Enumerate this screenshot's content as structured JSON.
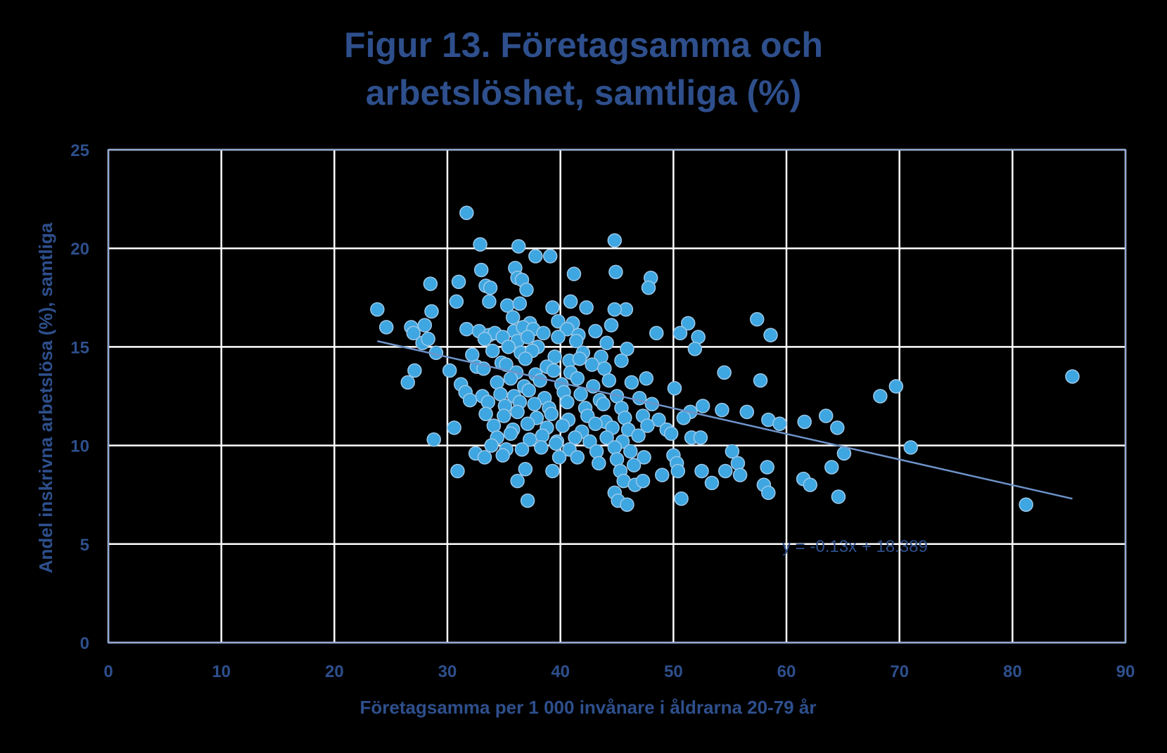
{
  "chart_data": {
    "type": "scatter",
    "title_lines": [
      "Figur 13. Företagsamma och",
      "arbetslöshet, samtliga (%)"
    ],
    "xlabel": "Företagsamma per 1 000 invånare i åldrarna 20-79 år",
    "ylabel": "Andel inskrivna arbetslösa  (%), samtliga",
    "xlim": [
      0,
      90
    ],
    "ylim": [
      0,
      25
    ],
    "xticks": [
      0,
      10,
      20,
      30,
      40,
      50,
      60,
      70,
      80,
      90
    ],
    "yticks": [
      0,
      5,
      10,
      15,
      20,
      25
    ],
    "xtick_labels": [
      "0",
      "10",
      "20",
      "30",
      "40",
      "50",
      "60",
      "70",
      "80",
      "90"
    ],
    "ytick_labels": [
      "0",
      "5",
      "10",
      "15",
      "20",
      "25"
    ],
    "grid": true,
    "colors": {
      "background": "#000000",
      "grid": "#FFFFFF",
      "point_fill": "#3EA6E0",
      "point_stroke": "#9CC9EA",
      "text": "#2E4F8C",
      "trendline": "#6E93C9"
    },
    "trendline": {
      "equation": "y = -0.13x + 18.389",
      "slope": -0.13,
      "intercept": 18.389,
      "x_range": [
        23.8,
        85.3
      ]
    },
    "points": [
      [
        31.7,
        21.8
      ],
      [
        32.9,
        20.2
      ],
      [
        36.3,
        20.1
      ],
      [
        44.8,
        20.4
      ],
      [
        37.8,
        19.6
      ],
      [
        39.1,
        19.6
      ],
      [
        36.0,
        19.0
      ],
      [
        33.0,
        18.9
      ],
      [
        44.9,
        18.8
      ],
      [
        36.2,
        18.5
      ],
      [
        36.6,
        18.4
      ],
      [
        48.0,
        18.5
      ],
      [
        41.2,
        18.7
      ],
      [
        31.0,
        18.3
      ],
      [
        28.5,
        18.2
      ],
      [
        33.4,
        18.1
      ],
      [
        33.8,
        18.0
      ],
      [
        37.0,
        17.9
      ],
      [
        47.8,
        18.0
      ],
      [
        30.8,
        17.3
      ],
      [
        33.7,
        17.3
      ],
      [
        35.3,
        17.1
      ],
      [
        36.4,
        17.2
      ],
      [
        39.3,
        17.0
      ],
      [
        40.9,
        17.3
      ],
      [
        42.3,
        17.0
      ],
      [
        45.8,
        16.9
      ],
      [
        44.8,
        16.9
      ],
      [
        23.8,
        16.9
      ],
      [
        28.6,
        16.8
      ],
      [
        35.8,
        16.5
      ],
      [
        37.3,
        16.2
      ],
      [
        39.8,
        16.3
      ],
      [
        41.1,
        16.2
      ],
      [
        44.5,
        16.1
      ],
      [
        51.3,
        16.2
      ],
      [
        57.4,
        16.4
      ],
      [
        24.6,
        16.0
      ],
      [
        26.8,
        16.0
      ],
      [
        27.0,
        15.7
      ],
      [
        28.0,
        16.1
      ],
      [
        31.7,
        15.9
      ],
      [
        32.8,
        15.8
      ],
      [
        33.7,
        15.6
      ],
      [
        34.2,
        15.7
      ],
      [
        35.9,
        15.8
      ],
      [
        36.7,
        16.0
      ],
      [
        37.6,
        15.9
      ],
      [
        38.5,
        15.7
      ],
      [
        40.6,
        15.9
      ],
      [
        41.6,
        15.6
      ],
      [
        43.1,
        15.8
      ],
      [
        48.5,
        15.7
      ],
      [
        50.6,
        15.7
      ],
      [
        52.2,
        15.5
      ],
      [
        58.6,
        15.6
      ],
      [
        27.8,
        15.2
      ],
      [
        28.3,
        15.4
      ],
      [
        33.3,
        15.4
      ],
      [
        34.9,
        15.5
      ],
      [
        36.2,
        15.3
      ],
      [
        37.1,
        15.5
      ],
      [
        38.0,
        15.0
      ],
      [
        39.8,
        15.5
      ],
      [
        41.4,
        15.3
      ],
      [
        44.1,
        15.2
      ],
      [
        45.9,
        14.9
      ],
      [
        51.9,
        14.9
      ],
      [
        29.0,
        14.7
      ],
      [
        32.2,
        14.6
      ],
      [
        34.0,
        14.8
      ],
      [
        35.4,
        15.0
      ],
      [
        36.5,
        14.7
      ],
      [
        37.5,
        14.8
      ],
      [
        39.5,
        14.5
      ],
      [
        40.8,
        14.3
      ],
      [
        42.0,
        14.7
      ],
      [
        43.6,
        14.5
      ],
      [
        45.4,
        14.3
      ],
      [
        34.8,
        14.2
      ],
      [
        36.9,
        14.4
      ],
      [
        38.8,
        14.0
      ],
      [
        41.7,
        14.4
      ],
      [
        42.8,
        14.1
      ],
      [
        27.1,
        13.8
      ],
      [
        30.2,
        13.8
      ],
      [
        32.6,
        14.0
      ],
      [
        33.2,
        13.9
      ],
      [
        35.2,
        14.1
      ],
      [
        36.1,
        13.7
      ],
      [
        37.8,
        13.6
      ],
      [
        39.4,
        13.8
      ],
      [
        40.9,
        13.7
      ],
      [
        43.9,
        13.9
      ],
      [
        47.6,
        13.4
      ],
      [
        54.5,
        13.7
      ],
      [
        26.5,
        13.2
      ],
      [
        31.2,
        13.1
      ],
      [
        34.4,
        13.2
      ],
      [
        35.6,
        13.4
      ],
      [
        36.8,
        13.0
      ],
      [
        38.2,
        13.3
      ],
      [
        40.1,
        13.1
      ],
      [
        41.5,
        13.4
      ],
      [
        42.9,
        13.0
      ],
      [
        44.3,
        13.3
      ],
      [
        46.3,
        13.2
      ],
      [
        57.7,
        13.3
      ],
      [
        69.7,
        13.0
      ],
      [
        85.3,
        13.5
      ],
      [
        31.6,
        12.7
      ],
      [
        33.1,
        12.5
      ],
      [
        34.7,
        12.6
      ],
      [
        35.9,
        12.5
      ],
      [
        37.2,
        12.8
      ],
      [
        38.6,
        12.4
      ],
      [
        40.3,
        12.7
      ],
      [
        41.8,
        12.6
      ],
      [
        43.5,
        12.3
      ],
      [
        45.0,
        12.5
      ],
      [
        47.0,
        12.4
      ],
      [
        50.1,
        12.9
      ],
      [
        68.3,
        12.5
      ],
      [
        32.0,
        12.3
      ],
      [
        33.6,
        12.2
      ],
      [
        35.1,
        12.0
      ],
      [
        36.4,
        12.2
      ],
      [
        37.7,
        12.1
      ],
      [
        39.0,
        11.9
      ],
      [
        40.6,
        12.2
      ],
      [
        42.2,
        11.9
      ],
      [
        43.8,
        12.1
      ],
      [
        45.4,
        11.9
      ],
      [
        48.1,
        12.1
      ],
      [
        51.5,
        11.7
      ],
      [
        52.6,
        12.0
      ],
      [
        54.3,
        11.8
      ],
      [
        56.5,
        11.7
      ],
      [
        33.4,
        11.6
      ],
      [
        35.0,
        11.5
      ],
      [
        36.2,
        11.7
      ],
      [
        37.9,
        11.4
      ],
      [
        39.2,
        11.6
      ],
      [
        40.7,
        11.3
      ],
      [
        42.4,
        11.5
      ],
      [
        44.0,
        11.2
      ],
      [
        45.7,
        11.4
      ],
      [
        47.3,
        11.5
      ],
      [
        48.7,
        11.3
      ],
      [
        50.9,
        11.4
      ],
      [
        58.4,
        11.3
      ],
      [
        59.4,
        11.1
      ],
      [
        61.6,
        11.2
      ],
      [
        63.5,
        11.5
      ],
      [
        34.1,
        11.0
      ],
      [
        35.8,
        10.8
      ],
      [
        37.1,
        11.1
      ],
      [
        38.8,
        10.9
      ],
      [
        40.2,
        11.0
      ],
      [
        41.9,
        10.7
      ],
      [
        43.1,
        11.1
      ],
      [
        44.6,
        10.9
      ],
      [
        46.0,
        10.8
      ],
      [
        47.7,
        11.0
      ],
      [
        49.4,
        10.8
      ],
      [
        64.5,
        10.9
      ],
      [
        30.6,
        10.9
      ],
      [
        34.4,
        10.4
      ],
      [
        35.6,
        10.6
      ],
      [
        37.3,
        10.3
      ],
      [
        38.4,
        10.5
      ],
      [
        39.7,
        10.2
      ],
      [
        41.3,
        10.4
      ],
      [
        42.6,
        10.2
      ],
      [
        44.1,
        10.4
      ],
      [
        45.5,
        10.2
      ],
      [
        46.9,
        10.5
      ],
      [
        49.8,
        10.6
      ],
      [
        51.6,
        10.4
      ],
      [
        52.4,
        10.4
      ],
      [
        28.8,
        10.3
      ],
      [
        33.9,
        10.0
      ],
      [
        35.2,
        9.8
      ],
      [
        36.6,
        9.8
      ],
      [
        38.3,
        9.9
      ],
      [
        39.6,
        10.1
      ],
      [
        40.8,
        9.8
      ],
      [
        43.2,
        9.7
      ],
      [
        44.8,
        9.9
      ],
      [
        46.2,
        9.7
      ],
      [
        50.0,
        9.5
      ],
      [
        55.2,
        9.7
      ],
      [
        65.1,
        9.6
      ],
      [
        71.0,
        9.9
      ],
      [
        32.5,
        9.6
      ],
      [
        33.3,
        9.4
      ],
      [
        34.9,
        9.5
      ],
      [
        39.9,
        9.4
      ],
      [
        41.5,
        9.4
      ],
      [
        43.4,
        9.1
      ],
      [
        45.0,
        9.3
      ],
      [
        47.4,
        9.4
      ],
      [
        50.3,
        9.1
      ],
      [
        55.7,
        9.1
      ],
      [
        30.9,
        8.7
      ],
      [
        36.9,
        8.8
      ],
      [
        39.3,
        8.7
      ],
      [
        45.3,
        8.7
      ],
      [
        46.5,
        9.0
      ],
      [
        49.0,
        8.5
      ],
      [
        50.4,
        8.7
      ],
      [
        52.5,
        8.7
      ],
      [
        54.6,
        8.7
      ],
      [
        55.9,
        8.5
      ],
      [
        58.3,
        8.9
      ],
      [
        61.5,
        8.3
      ],
      [
        64.0,
        8.9
      ],
      [
        36.2,
        8.2
      ],
      [
        45.6,
        8.2
      ],
      [
        46.6,
        8.0
      ],
      [
        47.3,
        8.2
      ],
      [
        53.4,
        8.1
      ],
      [
        58.0,
        8.0
      ],
      [
        62.1,
        8.0
      ],
      [
        37.1,
        7.2
      ],
      [
        44.8,
        7.6
      ],
      [
        45.1,
        7.2
      ],
      [
        45.9,
        7.0
      ],
      [
        50.7,
        7.3
      ],
      [
        58.4,
        7.6
      ],
      [
        64.6,
        7.4
      ],
      [
        81.2,
        7.0
      ]
    ]
  }
}
